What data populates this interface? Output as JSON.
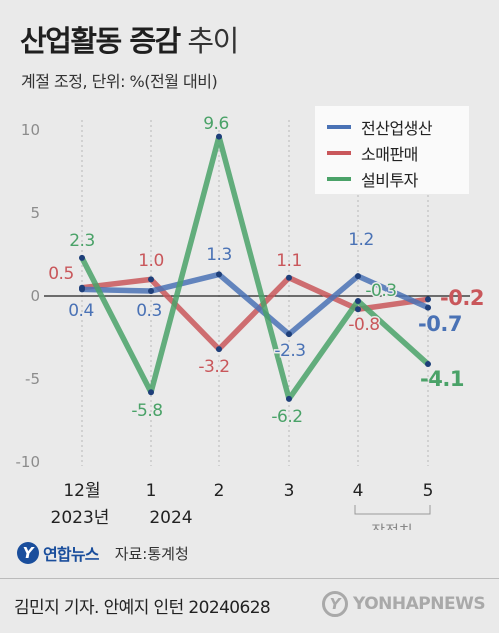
{
  "header": {
    "title_bold": "산업활동 증감",
    "title_light": "추이",
    "subtitle": "계절 조정, 단위: %(전월 대비)"
  },
  "chart_data": {
    "type": "line",
    "categories": [
      "12월\n2023년",
      "1\n2024",
      "2",
      "3",
      "4",
      "5"
    ],
    "xtick_line1": [
      "12월",
      "1",
      "2",
      "3",
      "4",
      "5"
    ],
    "xtick_line2": [
      "2023년",
      "2024",
      "",
      "",
      "",
      ""
    ],
    "yticks": [
      "10",
      "5",
      "0",
      "-5",
      "-10"
    ],
    "ylim": [
      -10,
      10
    ],
    "preliminary_label": "잠정치",
    "series": [
      {
        "name": "전산업생산",
        "color": "#4a72b5",
        "values": [
          0.4,
          0.3,
          1.3,
          -2.3,
          1.2,
          -0.7
        ],
        "labels": [
          "0.4",
          "0.3",
          "1.3",
          "-2.3",
          "1.2",
          "-0.7"
        ]
      },
      {
        "name": "소매판매",
        "color": "#c9575b",
        "values": [
          0.5,
          1.0,
          -3.2,
          1.1,
          -0.8,
          -0.2
        ],
        "labels": [
          "0.5",
          "1.0",
          "-3.2",
          "1.1",
          "-0.8",
          "-0.2"
        ]
      },
      {
        "name": "설비투자",
        "color": "#4aa268",
        "values": [
          2.3,
          -5.8,
          9.6,
          -6.2,
          -0.3,
          -4.1
        ],
        "labels": [
          "2.3",
          "-5.8",
          "9.6",
          "-6.2",
          "-0.3",
          "-4.1"
        ]
      }
    ]
  },
  "footer": {
    "logo_mark": "Y",
    "logo_text": "연합뉴스",
    "source": "자료:통계청",
    "credit": "김민지 기자. 안예지 인턴  20240628",
    "watermark": "YONHAPNEWS"
  }
}
